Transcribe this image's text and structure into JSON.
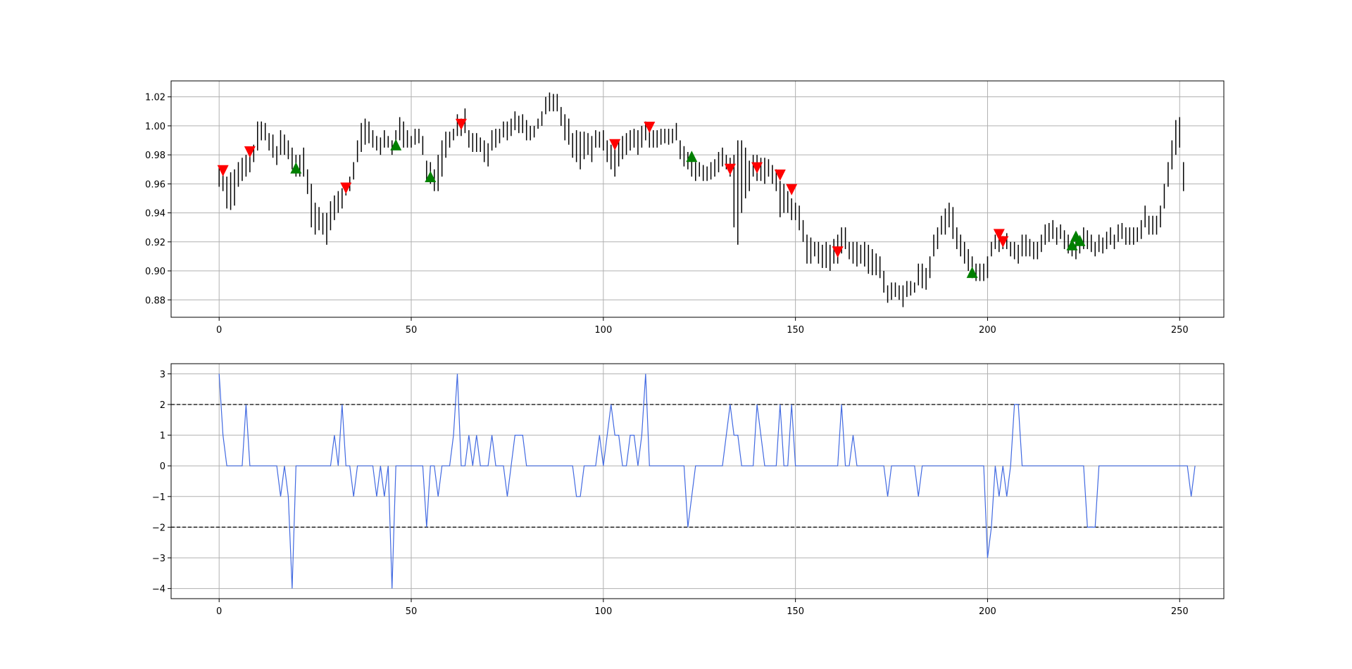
{
  "figure": {
    "background": "#ffffff"
  },
  "chart_data": [
    {
      "type": "ohlc-bars",
      "xlim": [
        -12.5,
        261.5
      ],
      "ylim": [
        0.868,
        1.031
      ],
      "xticks": [
        0,
        50,
        100,
        150,
        200,
        250
      ],
      "xtick_labels": [
        "0",
        "50",
        "100",
        "150",
        "200",
        "250"
      ],
      "yticks": [
        0.88,
        0.9,
        0.92,
        0.94,
        0.96,
        0.98,
        1.0,
        1.02
      ],
      "ytick_labels": [
        "0.88",
        "0.90",
        "0.92",
        "0.94",
        "0.96",
        "0.98",
        "1.00",
        "1.02"
      ],
      "grid": true,
      "bar_color": "#000000",
      "bars": {
        "x_start": 0,
        "high": [
          0.972,
          0.967,
          0.965,
          0.968,
          0.97,
          0.975,
          0.978,
          0.98,
          0.984,
          0.987,
          1.003,
          1.003,
          1.002,
          0.995,
          0.994,
          0.986,
          0.997,
          0.994,
          0.99,
          0.985,
          0.98,
          0.98,
          0.985,
          0.97,
          0.96,
          0.947,
          0.944,
          0.94,
          0.94,
          0.948,
          0.952,
          0.955,
          0.957,
          0.96,
          0.965,
          0.975,
          0.99,
          1.002,
          1.005,
          1.003,
          0.997,
          0.993,
          0.992,
          0.997,
          0.993,
          0.99,
          0.997,
          1.006,
          1.003,
          0.997,
          0.993,
          0.998,
          0.998,
          0.993,
          0.976,
          0.975,
          0.97,
          0.98,
          0.99,
          0.996,
          0.996,
          0.998,
          1.008,
          1.005,
          1.012,
          0.997,
          0.995,
          0.995,
          0.992,
          0.99,
          0.988,
          0.997,
          0.998,
          0.998,
          1.003,
          1.003,
          1.005,
          1.01,
          1.007,
          1.008,
          1.004,
          1.0,
          1.0,
          1.005,
          1.01,
          1.02,
          1.023,
          1.022,
          1.022,
          1.013,
          1.008,
          1.005,
          0.995,
          0.997,
          0.996,
          0.996,
          0.995,
          0.993,
          0.997,
          0.996,
          0.997,
          0.99,
          0.987,
          0.985,
          0.99,
          0.993,
          0.995,
          0.997,
          0.998,
          0.997,
          1.0,
          1.003,
          0.997,
          0.997,
          0.997,
          0.998,
          0.998,
          0.998,
          0.998,
          1.002,
          0.99,
          0.986,
          0.982,
          0.978,
          0.975,
          0.975,
          0.973,
          0.972,
          0.975,
          0.977,
          0.982,
          0.985,
          0.98,
          0.978,
          0.98,
          0.99,
          0.99,
          0.985,
          0.976,
          0.98,
          0.98,
          0.978,
          0.978,
          0.977,
          0.973,
          0.97,
          0.962,
          0.96,
          0.955,
          0.95,
          0.947,
          0.945,
          0.935,
          0.925,
          0.923,
          0.92,
          0.92,
          0.918,
          0.92,
          0.918,
          0.922,
          0.925,
          0.93,
          0.93,
          0.92,
          0.92,
          0.92,
          0.918,
          0.92,
          0.918,
          0.915,
          0.912,
          0.91,
          0.9,
          0.89,
          0.892,
          0.892,
          0.89,
          0.89,
          0.893,
          0.893,
          0.892,
          0.905,
          0.905,
          0.902,
          0.91,
          0.925,
          0.93,
          0.938,
          0.943,
          0.947,
          0.944,
          0.93,
          0.925,
          0.92,
          0.915,
          0.91,
          0.905,
          0.905,
          0.905,
          0.91,
          0.92,
          0.925,
          0.924,
          0.924,
          0.926,
          0.92,
          0.92,
          0.918,
          0.925,
          0.925,
          0.922,
          0.92,
          0.92,
          0.925,
          0.932,
          0.933,
          0.935,
          0.93,
          0.932,
          0.928,
          0.925,
          0.922,
          0.92,
          0.923,
          0.93,
          0.928,
          0.925,
          0.92,
          0.925,
          0.923,
          0.927,
          0.93,
          0.925,
          0.932,
          0.933,
          0.93,
          0.93,
          0.93,
          0.93,
          0.935,
          0.945,
          0.938,
          0.938,
          0.938,
          0.945,
          0.96,
          0.975,
          0.99,
          1.004,
          1.006,
          0.975
        ],
        "low": [
          0.958,
          0.955,
          0.943,
          0.942,
          0.945,
          0.958,
          0.962,
          0.965,
          0.968,
          0.975,
          0.983,
          0.99,
          0.99,
          0.983,
          0.978,
          0.973,
          0.98,
          0.98,
          0.977,
          0.97,
          0.965,
          0.965,
          0.965,
          0.953,
          0.93,
          0.925,
          0.928,
          0.925,
          0.918,
          0.928,
          0.935,
          0.94,
          0.943,
          0.952,
          0.955,
          0.963,
          0.975,
          0.982,
          0.987,
          0.988,
          0.985,
          0.983,
          0.98,
          0.985,
          0.985,
          0.98,
          0.985,
          0.99,
          0.985,
          0.985,
          0.985,
          0.987,
          0.988,
          0.98,
          0.962,
          0.96,
          0.955,
          0.955,
          0.965,
          0.978,
          0.985,
          0.99,
          0.993,
          0.993,
          0.995,
          0.985,
          0.982,
          0.982,
          0.982,
          0.975,
          0.972,
          0.983,
          0.985,
          0.988,
          0.992,
          0.99,
          0.993,
          0.997,
          0.995,
          0.995,
          0.99,
          0.99,
          0.992,
          0.998,
          1.0,
          1.008,
          1.01,
          1.01,
          1.01,
          1.0,
          0.99,
          0.987,
          0.978,
          0.975,
          0.97,
          0.977,
          0.98,
          0.975,
          0.985,
          0.985,
          0.983,
          0.975,
          0.97,
          0.965,
          0.972,
          0.977,
          0.98,
          0.983,
          0.985,
          0.98,
          0.985,
          0.99,
          0.985,
          0.985,
          0.985,
          0.987,
          0.988,
          0.987,
          0.988,
          0.99,
          0.977,
          0.972,
          0.97,
          0.965,
          0.962,
          0.965,
          0.962,
          0.962,
          0.963,
          0.965,
          0.968,
          0.972,
          0.97,
          0.965,
          0.93,
          0.918,
          0.94,
          0.95,
          0.955,
          0.965,
          0.962,
          0.962,
          0.96,
          0.965,
          0.96,
          0.955,
          0.937,
          0.94,
          0.94,
          0.935,
          0.935,
          0.928,
          0.92,
          0.905,
          0.905,
          0.91,
          0.905,
          0.902,
          0.902,
          0.9,
          0.905,
          0.905,
          0.912,
          0.915,
          0.908,
          0.905,
          0.903,
          0.905,
          0.903,
          0.898,
          0.897,
          0.897,
          0.895,
          0.885,
          0.878,
          0.88,
          0.882,
          0.88,
          0.875,
          0.882,
          0.883,
          0.885,
          0.89,
          0.888,
          0.887,
          0.895,
          0.91,
          0.915,
          0.925,
          0.925,
          0.93,
          0.922,
          0.915,
          0.91,
          0.905,
          0.9,
          0.895,
          0.893,
          0.893,
          0.893,
          0.895,
          0.91,
          0.915,
          0.913,
          0.915,
          0.915,
          0.91,
          0.908,
          0.905,
          0.91,
          0.91,
          0.91,
          0.908,
          0.908,
          0.913,
          0.918,
          0.92,
          0.922,
          0.918,
          0.922,
          0.915,
          0.912,
          0.91,
          0.908,
          0.912,
          0.915,
          0.915,
          0.913,
          0.91,
          0.913,
          0.912,
          0.915,
          0.918,
          0.915,
          0.92,
          0.922,
          0.918,
          0.918,
          0.918,
          0.92,
          0.922,
          0.93,
          0.925,
          0.925,
          0.925,
          0.93,
          0.943,
          0.958,
          0.97,
          0.98,
          0.985,
          0.955
        ]
      },
      "signals": {
        "sell": [
          {
            "x": 1,
            "y": 0.969
          },
          {
            "x": 8,
            "y": 0.982
          },
          {
            "x": 33,
            "y": 0.957
          },
          {
            "x": 63,
            "y": 1.001
          },
          {
            "x": 103,
            "y": 0.987
          },
          {
            "x": 112,
            "y": 0.999
          },
          {
            "x": 133,
            "y": 0.97
          },
          {
            "x": 140,
            "y": 0.971
          },
          {
            "x": 146,
            "y": 0.966
          },
          {
            "x": 149,
            "y": 0.956
          },
          {
            "x": 161,
            "y": 0.913
          },
          {
            "x": 203,
            "y": 0.925
          },
          {
            "x": 204,
            "y": 0.92
          }
        ],
        "buy": [
          {
            "x": 20,
            "y": 0.971
          },
          {
            "x": 46,
            "y": 0.987
          },
          {
            "x": 55,
            "y": 0.965
          },
          {
            "x": 123,
            "y": 0.979
          },
          {
            "x": 196,
            "y": 0.899
          },
          {
            "x": 222,
            "y": 0.918
          },
          {
            "x": 223,
            "y": 0.924
          },
          {
            "x": 224,
            "y": 0.921
          }
        ],
        "sell_color": "#ff0000",
        "buy_color": "#008000"
      }
    },
    {
      "type": "line",
      "xlim": [
        -12.5,
        261.5
      ],
      "ylim": [
        -4.33,
        3.33
      ],
      "xticks": [
        0,
        50,
        100,
        150,
        200,
        250
      ],
      "xtick_labels": [
        "0",
        "50",
        "100",
        "150",
        "200",
        "250"
      ],
      "yticks": [
        -4,
        -3,
        -2,
        -1,
        0,
        1,
        2,
        3
      ],
      "ytick_labels": [
        "−4",
        "−3",
        "−2",
        "−1",
        "0",
        "1",
        "2",
        "3"
      ],
      "grid": true,
      "line_color": "#4169e1",
      "thresholds": [
        2,
        -2
      ],
      "threshold_color": "#000000",
      "series": {
        "x_start": 0,
        "values": [
          3,
          1,
          0,
          0,
          0,
          0,
          0,
          2,
          0,
          0,
          0,
          0,
          0,
          0,
          0,
          0,
          -1,
          0,
          -1,
          -4,
          0,
          0,
          0,
          0,
          0,
          0,
          0,
          0,
          0,
          0,
          1,
          0,
          2,
          0,
          0,
          -1,
          0,
          0,
          0,
          0,
          0,
          -1,
          0,
          -1,
          0,
          -4,
          0,
          0,
          0,
          0,
          0,
          0,
          0,
          0,
          -2,
          0,
          0,
          -1,
          0,
          0,
          0,
          1,
          3,
          0,
          0,
          1,
          0,
          1,
          0,
          0,
          0,
          1,
          0,
          0,
          0,
          -1,
          0,
          1,
          1,
          1,
          0,
          0,
          0,
          0,
          0,
          0,
          0,
          0,
          0,
          0,
          0,
          0,
          0,
          -1,
          -1,
          0,
          0,
          0,
          0,
          1,
          0,
          1,
          2,
          1,
          1,
          0,
          0,
          1,
          1,
          0,
          1,
          3,
          0,
          0,
          0,
          0,
          0,
          0,
          0,
          0,
          0,
          0,
          -2,
          -1,
          0,
          0,
          0,
          0,
          0,
          0,
          0,
          0,
          1,
          2,
          1,
          1,
          0,
          0,
          0,
          0,
          2,
          1,
          0,
          0,
          0,
          0,
          2,
          0,
          0,
          2,
          0,
          0,
          0,
          0,
          0,
          0,
          0,
          0,
          0,
          0,
          0,
          0,
          2,
          0,
          0,
          1,
          0,
          0,
          0,
          0,
          0,
          0,
          0,
          0,
          -1,
          0,
          0,
          0,
          0,
          0,
          0,
          0,
          -1,
          0,
          0,
          0,
          0,
          0,
          0,
          0,
          0,
          0,
          0,
          0,
          0,
          0,
          0,
          0,
          0,
          0,
          -3,
          -2,
          0,
          -1,
          0,
          -1,
          0,
          2,
          2,
          0,
          0,
          0,
          0,
          0,
          0,
          0,
          0,
          0,
          0,
          0,
          0,
          0,
          0,
          0,
          0,
          0,
          -2,
          -2,
          -2,
          0,
          0,
          0,
          0,
          0,
          0,
          0,
          0,
          0,
          0,
          0,
          0,
          0,
          0,
          0,
          0,
          0,
          0,
          0,
          0,
          0,
          0,
          0,
          0,
          -1,
          0
        ]
      }
    }
  ]
}
